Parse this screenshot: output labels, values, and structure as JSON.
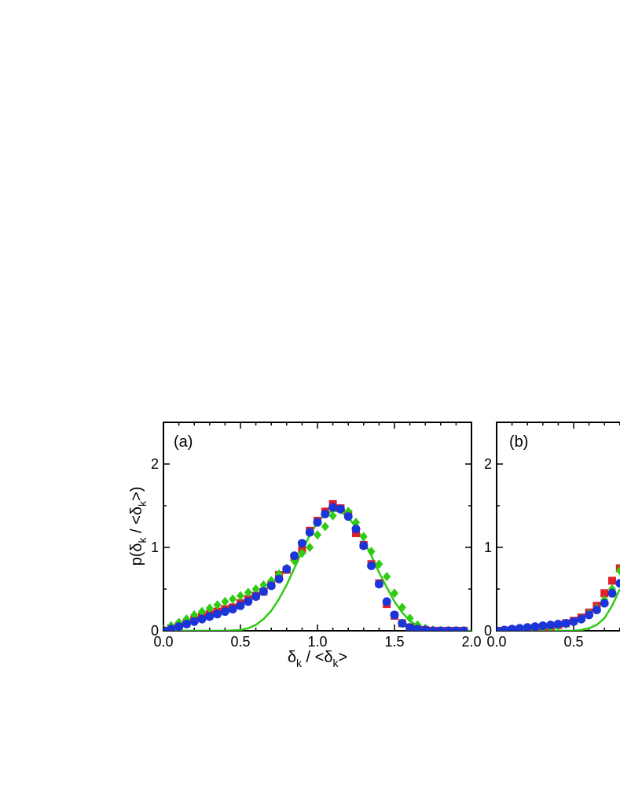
{
  "colors": {
    "red": "#e0202a",
    "green": "#2ecc12",
    "blue": "#1a35d8",
    "axis": "#000000"
  },
  "chart_data": [
    {
      "panel_label": "(a)",
      "type": "scatter",
      "xlim": [
        0.0,
        2.0
      ],
      "ylim": [
        0,
        2.5
      ],
      "x_ticks": [
        "0.0",
        "0.5",
        "1.0",
        "1.5",
        "2.0"
      ],
      "y_ticks": [
        "0",
        "1",
        "2"
      ],
      "xlabel": {
        "main": "δ",
        "sub": "k",
        "rest": " / <δ",
        "sub2": "k",
        "end": ">"
      },
      "ylabel": {
        "pre": "p(δ",
        "sub": "k",
        "mid": " / <δ",
        "sub2": "k",
        "end": ">)"
      },
      "series": [
        {
          "marker": "square",
          "color": "red",
          "x": [
            0.0,
            0.05,
            0.1,
            0.15,
            0.2,
            0.25,
            0.3,
            0.35,
            0.4,
            0.45,
            0.5,
            0.55,
            0.6,
            0.65,
            0.7,
            0.75,
            0.8,
            0.85,
            0.9,
            0.95,
            1.0,
            1.05,
            1.1,
            1.15,
            1.2,
            1.25,
            1.3,
            1.35,
            1.4,
            1.45,
            1.5,
            1.55,
            1.6,
            1.65,
            1.7,
            1.75,
            1.8,
            1.85,
            1.9,
            1.95
          ],
          "y": [
            0.0,
            0.03,
            0.06,
            0.09,
            0.13,
            0.17,
            0.2,
            0.23,
            0.26,
            0.28,
            0.33,
            0.38,
            0.42,
            0.47,
            0.55,
            0.67,
            0.73,
            0.88,
            0.97,
            1.2,
            1.32,
            1.43,
            1.52,
            1.47,
            1.4,
            1.17,
            1.03,
            0.8,
            0.57,
            0.32,
            0.18,
            0.09,
            0.04,
            0.02,
            0.01,
            0.0,
            0.0,
            0.0,
            0.0,
            0.0
          ]
        },
        {
          "marker": "diamond",
          "color": "green",
          "x": [
            0.0,
            0.05,
            0.1,
            0.15,
            0.2,
            0.25,
            0.3,
            0.35,
            0.4,
            0.45,
            0.5,
            0.55,
            0.6,
            0.65,
            0.7,
            0.75,
            0.8,
            0.85,
            0.9,
            0.95,
            1.0,
            1.05,
            1.1,
            1.15,
            1.2,
            1.25,
            1.3,
            1.35,
            1.4,
            1.45,
            1.5,
            1.55,
            1.6,
            1.65,
            1.7,
            1.75,
            1.8,
            1.85,
            1.9,
            1.95
          ],
          "y": [
            0.02,
            0.06,
            0.1,
            0.14,
            0.19,
            0.23,
            0.27,
            0.31,
            0.35,
            0.38,
            0.42,
            0.46,
            0.5,
            0.55,
            0.6,
            0.68,
            0.75,
            0.84,
            0.93,
            1.0,
            1.15,
            1.25,
            1.38,
            1.45,
            1.43,
            1.3,
            1.13,
            0.95,
            0.8,
            0.65,
            0.45,
            0.28,
            0.15,
            0.07,
            0.03,
            0.01,
            0.0,
            0.0,
            0.0,
            0.0
          ]
        },
        {
          "marker": "circle",
          "color": "blue",
          "x": [
            0.0,
            0.05,
            0.1,
            0.15,
            0.2,
            0.25,
            0.3,
            0.35,
            0.4,
            0.45,
            0.5,
            0.55,
            0.6,
            0.65,
            0.7,
            0.75,
            0.8,
            0.85,
            0.9,
            0.95,
            1.0,
            1.05,
            1.1,
            1.15,
            1.2,
            1.25,
            1.3,
            1.35,
            1.4,
            1.45,
            1.5,
            1.55,
            1.6,
            1.65,
            1.7,
            1.75,
            1.8,
            1.85,
            1.9,
            1.95
          ],
          "y": [
            0.0,
            0.02,
            0.05,
            0.08,
            0.11,
            0.14,
            0.17,
            0.2,
            0.23,
            0.26,
            0.3,
            0.35,
            0.41,
            0.47,
            0.54,
            0.62,
            0.74,
            0.9,
            1.05,
            1.18,
            1.3,
            1.4,
            1.48,
            1.46,
            1.37,
            1.22,
            1.02,
            0.78,
            0.56,
            0.35,
            0.19,
            0.09,
            0.04,
            0.02,
            0.01,
            0.0,
            0.0,
            0.0,
            0.0,
            0.0
          ]
        },
        {
          "marker": "line",
          "color": "green",
          "x": [
            0.0,
            0.4,
            0.5,
            0.55,
            0.6,
            0.65,
            0.7,
            0.75,
            0.8,
            0.85,
            0.9,
            0.95,
            1.0,
            1.05,
            1.1,
            1.15,
            1.2,
            1.25,
            1.3,
            1.35,
            1.4,
            1.45,
            1.5,
            1.55,
            1.6,
            1.65,
            1.7,
            1.75,
            1.8,
            1.9,
            2.0
          ],
          "y": [
            0.0,
            0.0,
            0.01,
            0.03,
            0.07,
            0.14,
            0.24,
            0.38,
            0.55,
            0.75,
            0.95,
            1.15,
            1.3,
            1.4,
            1.44,
            1.43,
            1.36,
            1.24,
            1.08,
            0.9,
            0.7,
            0.52,
            0.35,
            0.22,
            0.12,
            0.06,
            0.03,
            0.01,
            0.0,
            0.0,
            0.0
          ]
        }
      ]
    },
    {
      "panel_label": "(b)",
      "type": "scatter",
      "xlim": [
        0.0,
        2.0
      ],
      "ylim": [
        0,
        2.5
      ],
      "x_ticks": [
        "0.0",
        "0.5"
      ],
      "y_ticks": [
        "0",
        "1",
        "2"
      ],
      "series": [
        {
          "marker": "square",
          "color": "red",
          "x": [
            0.0,
            0.05,
            0.1,
            0.15,
            0.2,
            0.25,
            0.3,
            0.35,
            0.4,
            0.45,
            0.5,
            0.55,
            0.6,
            0.65,
            0.7,
            0.75,
            0.8
          ],
          "y": [
            0.0,
            0.0,
            0.01,
            0.01,
            0.02,
            0.03,
            0.04,
            0.05,
            0.07,
            0.09,
            0.12,
            0.16,
            0.22,
            0.3,
            0.45,
            0.6,
            0.75
          ]
        },
        {
          "marker": "diamond",
          "color": "green",
          "x": [
            0.0,
            0.05,
            0.1,
            0.15,
            0.2,
            0.25,
            0.3,
            0.35,
            0.4,
            0.45,
            0.5,
            0.55,
            0.6,
            0.65,
            0.7,
            0.75,
            0.8
          ],
          "y": [
            0.0,
            0.0,
            0.0,
            0.0,
            0.01,
            0.02,
            0.03,
            0.04,
            0.06,
            0.08,
            0.11,
            0.15,
            0.21,
            0.27,
            0.37,
            0.5,
            0.72
          ]
        },
        {
          "marker": "circle",
          "color": "blue",
          "x": [
            0.0,
            0.05,
            0.1,
            0.15,
            0.2,
            0.25,
            0.3,
            0.35,
            0.4,
            0.45,
            0.5,
            0.55,
            0.6,
            0.65,
            0.7,
            0.75,
            0.8
          ],
          "y": [
            0.0,
            0.01,
            0.02,
            0.03,
            0.04,
            0.05,
            0.06,
            0.07,
            0.08,
            0.09,
            0.11,
            0.14,
            0.19,
            0.25,
            0.33,
            0.45,
            0.57
          ]
        },
        {
          "marker": "line",
          "color": "green",
          "x": [
            0.0,
            0.5,
            0.55,
            0.6,
            0.65,
            0.7,
            0.75,
            0.8
          ],
          "y": [
            0.0,
            0.0,
            0.01,
            0.03,
            0.07,
            0.15,
            0.3,
            0.5
          ]
        }
      ]
    }
  ]
}
